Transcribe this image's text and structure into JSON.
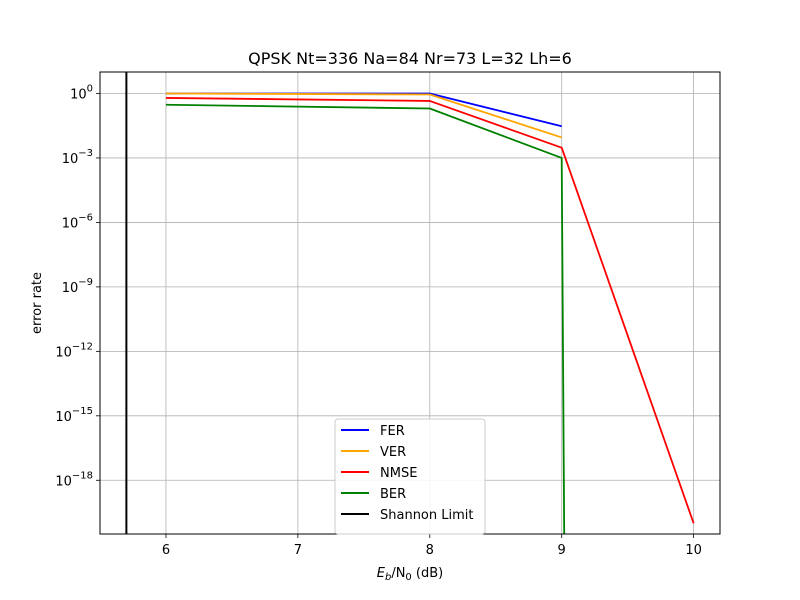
{
  "chart_data": {
    "type": "line",
    "title": "QPSK Nt=336 Na=84 Nr=73 L=32 Lh=6",
    "xlabel_main": "E",
    "xlabel_sub_b": "b",
    "xlabel_slash": "/N",
    "xlabel_sub_0": "0",
    "xlabel_unit": " (dB)",
    "ylabel": "error rate",
    "xlim": [
      5.5,
      10.2
    ],
    "ylim_log10": [
      -20.5,
      1.0
    ],
    "xscale": "linear",
    "yscale": "log",
    "grid": true,
    "legend_position": "lower-center",
    "x_ticks": [
      6,
      7,
      8,
      9,
      10
    ],
    "x_tick_labels": [
      "6",
      "7",
      "8",
      "9",
      "10"
    ],
    "y_ticks_log10": [
      0,
      -3,
      -6,
      -9,
      -12,
      -15,
      -18
    ],
    "y_tick_labels": [
      {
        "base": "10",
        "exp": "0"
      },
      {
        "base": "10",
        "exp": "−3"
      },
      {
        "base": "10",
        "exp": "−6"
      },
      {
        "base": "10",
        "exp": "−9"
      },
      {
        "base": "10",
        "exp": "−12"
      },
      {
        "base": "10",
        "exp": "−15"
      },
      {
        "base": "10",
        "exp": "−18"
      }
    ],
    "series": [
      {
        "name": "FER",
        "color": "#0000ff",
        "x": [
          6,
          8,
          9
        ],
        "y": [
          1.0,
          1.0,
          0.03
        ]
      },
      {
        "name": "VER",
        "color": "#ffa500",
        "x": [
          6,
          8,
          9
        ],
        "y": [
          1.0,
          0.9,
          0.009
        ]
      },
      {
        "name": "NMSE",
        "color": "#ff0000",
        "x": [
          6,
          8,
          9,
          10
        ],
        "y": [
          0.62,
          0.45,
          0.003,
          1e-20
        ]
      },
      {
        "name": "BER",
        "color": "#008000",
        "x": [
          6,
          8,
          9,
          9.02
        ],
        "y": [
          0.3,
          0.2,
          0.001,
          1e-22
        ]
      }
    ],
    "reference_lines": [
      {
        "name": "Shannon Limit",
        "color": "#000000",
        "x": 5.7
      }
    ]
  }
}
